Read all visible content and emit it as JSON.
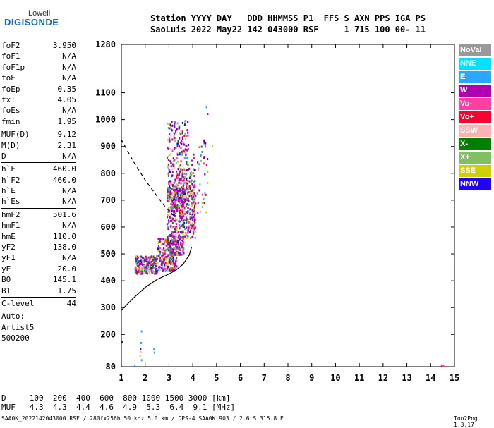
{
  "logo": {
    "line1": "Lowell",
    "line2": "DIGISONDE"
  },
  "header": {
    "line1": "Station YYYY DAY   DDD HHMMSS P1  FFS S AXN PPS IGA PS",
    "line2": "SaoLuis 2022 May22 142 043000 RSF     1 715 100 00- 11"
  },
  "params": [
    {
      "name": "foF2",
      "value": "3.950"
    },
    {
      "name": "foF1",
      "value": "N/A"
    },
    {
      "name": "foF1p",
      "value": "N/A"
    },
    {
      "name": "foE",
      "value": "N/A"
    },
    {
      "name": "foEp",
      "value": "0.35"
    },
    {
      "name": "fxI",
      "value": "4.05"
    },
    {
      "name": "foEs",
      "value": "N/A"
    },
    {
      "name": "fmin",
      "value": "1.95"
    },
    {
      "name": "MUF(D)",
      "value": "9.12"
    },
    {
      "name": "M(D)",
      "value": "2.31"
    },
    {
      "name": "D",
      "value": "N/A"
    },
    {
      "name": "h`F",
      "value": "460.0"
    },
    {
      "name": "h`F2",
      "value": "460.0"
    },
    {
      "name": "h`E",
      "value": "N/A"
    },
    {
      "name": "h`Es",
      "value": "N/A"
    },
    {
      "name": "hmF2",
      "value": "501.6"
    },
    {
      "name": "hmF1",
      "value": "N/A"
    },
    {
      "name": "hmE",
      "value": "110.0"
    },
    {
      "name": "yF2",
      "value": "138.0"
    },
    {
      "name": "yF1",
      "value": "N/A"
    },
    {
      "name": "yE",
      "value": "20.0"
    },
    {
      "name": "B0",
      "value": "145.1"
    },
    {
      "name": "B1",
      "value": "1.75"
    },
    {
      "name": "C-level",
      "value": "44"
    },
    {
      "name": "Auto:",
      "value": ""
    },
    {
      "name": "Artist5",
      "value": ""
    },
    {
      "name": "500200",
      "value": ""
    }
  ],
  "legend": [
    {
      "label": "NoVal",
      "color": "#999999"
    },
    {
      "label": "NNE",
      "color": "#00e0ff"
    },
    {
      "label": "E",
      "color": "#2aa8ff"
    },
    {
      "label": "W",
      "color": "#b000b0"
    },
    {
      "label": "Vo-",
      "color": "#ff40a0"
    },
    {
      "label": "Vo+",
      "color": "#ff0030"
    },
    {
      "label": "SSW",
      "color": "#ffb0b0"
    },
    {
      "label": "X-",
      "color": "#008000"
    },
    {
      "label": "X+",
      "color": "#80c060"
    },
    {
      "label": "SSE",
      "color": "#d0d000"
    },
    {
      "label": "NNW",
      "color": "#2000ff"
    }
  ],
  "chart_data": {
    "type": "scatter",
    "xlim": [
      1,
      15
    ],
    "ylim": [
      80,
      1280
    ],
    "xticks": [
      1,
      2,
      3,
      4,
      5,
      6,
      7,
      8,
      9,
      10,
      11,
      12,
      13,
      14,
      15
    ],
    "yticks": [
      80,
      200,
      300,
      400,
      500,
      600,
      700,
      800,
      900,
      1000,
      1100,
      1280
    ],
    "grid": false,
    "lines": [
      {
        "name": "profile",
        "style": "solid",
        "points": [
          [
            1.0,
            290
          ],
          [
            1.5,
            335
          ],
          [
            2.0,
            375
          ],
          [
            2.5,
            405
          ],
          [
            3.0,
            425
          ],
          [
            3.3,
            440
          ],
          [
            3.6,
            462
          ],
          [
            3.85,
            495
          ],
          [
            3.95,
            525
          ]
        ]
      },
      {
        "name": "trace",
        "style": "dashed",
        "points": [
          [
            1.0,
            925
          ],
          [
            1.5,
            845
          ],
          [
            2.0,
            775
          ],
          [
            2.5,
            715
          ],
          [
            2.8,
            680
          ],
          [
            3.1,
            650
          ],
          [
            3.3,
            635
          ]
        ]
      }
    ],
    "clusters": [
      {
        "fmin": 1.55,
        "fmax": 2.5,
        "hmin": 430,
        "hmax": 495,
        "count": 220
      },
      {
        "fmin": 2.5,
        "fmax": 3.3,
        "hmin": 440,
        "hmax": 560,
        "count": 260
      },
      {
        "fmin": 2.9,
        "fmax": 3.6,
        "hmin": 500,
        "hmax": 750,
        "count": 380
      },
      {
        "fmin": 2.9,
        "fmax": 3.8,
        "hmin": 700,
        "hmax": 1000,
        "count": 260
      },
      {
        "fmin": 3.4,
        "fmax": 4.1,
        "hmin": 560,
        "hmax": 820,
        "count": 240
      },
      {
        "fmin": 3.8,
        "fmax": 4.6,
        "hmin": 650,
        "hmax": 930,
        "count": 60
      }
    ],
    "isolated": [
      {
        "f": 1.82,
        "h": 215,
        "c": "#2aa8ff"
      },
      {
        "f": 1.8,
        "h": 172,
        "c": "#2aa8ff"
      },
      {
        "f": 1.78,
        "h": 150,
        "c": "#2000ff"
      },
      {
        "f": 1.79,
        "h": 138,
        "c": "#ffb0b0"
      },
      {
        "f": 1.76,
        "h": 125,
        "c": "#d0d000"
      },
      {
        "f": 1.82,
        "h": 108,
        "c": "#2aa8ff"
      },
      {
        "f": 2.34,
        "h": 148,
        "c": "#2aa8ff"
      },
      {
        "f": 2.36,
        "h": 136,
        "c": "#2aa8ff"
      },
      {
        "f": 1.53,
        "h": 88,
        "c": "#2aa8ff"
      },
      {
        "f": 1.0,
        "h": 175,
        "c": "#2000ff"
      },
      {
        "f": 14.43,
        "h": 85,
        "c": "#ff0030"
      },
      {
        "f": 14.5,
        "h": 85,
        "c": "#ff40a0"
      },
      {
        "f": 4.55,
        "h": 1050,
        "c": "#2aa8ff"
      },
      {
        "f": 4.6,
        "h": 1025,
        "c": "#b000b0"
      },
      {
        "f": 4.8,
        "h": 905,
        "c": "#d0d000"
      }
    ]
  },
  "footer": {
    "dist": "D     100  200  400  600  800 1000 1500 3000 [km]",
    "muf": "MUF   4.3  4.3  4.4  4.6  4.9  5.3  6.4  9.1 [MHz]",
    "file": "SAA0K_2022142043000.RSF / 280fx256h 50 kHz 5.0 km / DPS-4 SAA0K 903 / 2.6 S 315.8 E",
    "version": "Ion2Png 1.3.17"
  }
}
